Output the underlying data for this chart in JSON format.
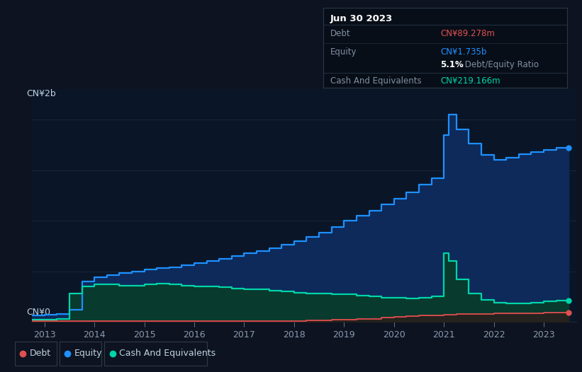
{
  "background_color": "#0d1320",
  "plot_bg_color": "#0a1628",
  "grid_color": "#1a2a3a",
  "title_y_label": "CN¥2b",
  "zero_y_label": "CN¥0",
  "x_ticks": [
    2013,
    2014,
    2015,
    2016,
    2017,
    2018,
    2019,
    2020,
    2021,
    2022,
    2023
  ],
  "years": [
    2012.75,
    2013.0,
    2013.25,
    2013.5,
    2013.75,
    2014.0,
    2014.25,
    2014.5,
    2014.75,
    2015.0,
    2015.25,
    2015.5,
    2015.75,
    2016.0,
    2016.25,
    2016.5,
    2016.75,
    2017.0,
    2017.25,
    2017.5,
    2017.75,
    2018.0,
    2018.25,
    2018.5,
    2018.75,
    2019.0,
    2019.25,
    2019.5,
    2019.75,
    2020.0,
    2020.25,
    2020.5,
    2020.75,
    2021.0,
    2021.1,
    2021.25,
    2021.5,
    2021.75,
    2022.0,
    2022.25,
    2022.5,
    2022.75,
    2023.0,
    2023.25,
    2023.5
  ],
  "equity": [
    0.06,
    0.07,
    0.08,
    0.12,
    0.4,
    0.44,
    0.46,
    0.48,
    0.5,
    0.52,
    0.53,
    0.54,
    0.56,
    0.58,
    0.6,
    0.62,
    0.65,
    0.68,
    0.7,
    0.73,
    0.76,
    0.8,
    0.84,
    0.88,
    0.94,
    1.0,
    1.05,
    1.1,
    1.16,
    1.22,
    1.28,
    1.36,
    1.42,
    1.85,
    2.05,
    1.9,
    1.76,
    1.65,
    1.6,
    1.62,
    1.66,
    1.68,
    1.7,
    1.72,
    1.735
  ],
  "cash": [
    0.02,
    0.02,
    0.03,
    0.28,
    0.35,
    0.37,
    0.37,
    0.36,
    0.36,
    0.37,
    0.38,
    0.37,
    0.36,
    0.35,
    0.35,
    0.34,
    0.33,
    0.32,
    0.32,
    0.31,
    0.3,
    0.29,
    0.28,
    0.28,
    0.27,
    0.27,
    0.26,
    0.25,
    0.24,
    0.24,
    0.23,
    0.24,
    0.25,
    0.68,
    0.6,
    0.42,
    0.28,
    0.22,
    0.19,
    0.18,
    0.18,
    0.19,
    0.2,
    0.21,
    0.219
  ],
  "debt": [
    0.005,
    0.005,
    0.005,
    0.01,
    0.01,
    0.01,
    0.01,
    0.01,
    0.01,
    0.01,
    0.01,
    0.01,
    0.01,
    0.01,
    0.01,
    0.01,
    0.01,
    0.01,
    0.01,
    0.01,
    0.01,
    0.01,
    0.015,
    0.015,
    0.02,
    0.02,
    0.03,
    0.03,
    0.04,
    0.05,
    0.055,
    0.06,
    0.065,
    0.07,
    0.07,
    0.075,
    0.08,
    0.08,
    0.082,
    0.083,
    0.085,
    0.087,
    0.088,
    0.089,
    0.089
  ],
  "equity_color": "#1E90FF",
  "equity_fill": "#0d2a5a",
  "cash_color": "#00d4a8",
  "cash_fill": "#083a2e",
  "debt_color": "#e05050",
  "debt_fill": "#3a1515",
  "text_color": "#8a9ab0",
  "label_color": "#c0d0e0",
  "tooltip_bg": "#080e18",
  "tooltip_border": "#283848",
  "tooltip_title": "Jun 30 2023",
  "tooltip_debt_label": "Debt",
  "tooltip_debt_val": "CN¥89.278m",
  "tooltip_equity_label": "Equity",
  "tooltip_equity_val": "CN¥1.735b",
  "tooltip_ratio_bold": "5.1%",
  "tooltip_ratio_rest": " Debt/Equity Ratio",
  "tooltip_cash_label": "Cash And Equivalents",
  "tooltip_cash_val": "CN¥219.166m",
  "legend_items": [
    {
      "label": "Debt",
      "color": "#e05050"
    },
    {
      "label": "Equity",
      "color": "#1E90FF"
    },
    {
      "label": "Cash And Equivalents",
      "color": "#00d4a8"
    }
  ],
  "ylim": [
    0,
    2.3
  ],
  "xlim": [
    2012.75,
    2023.65
  ]
}
